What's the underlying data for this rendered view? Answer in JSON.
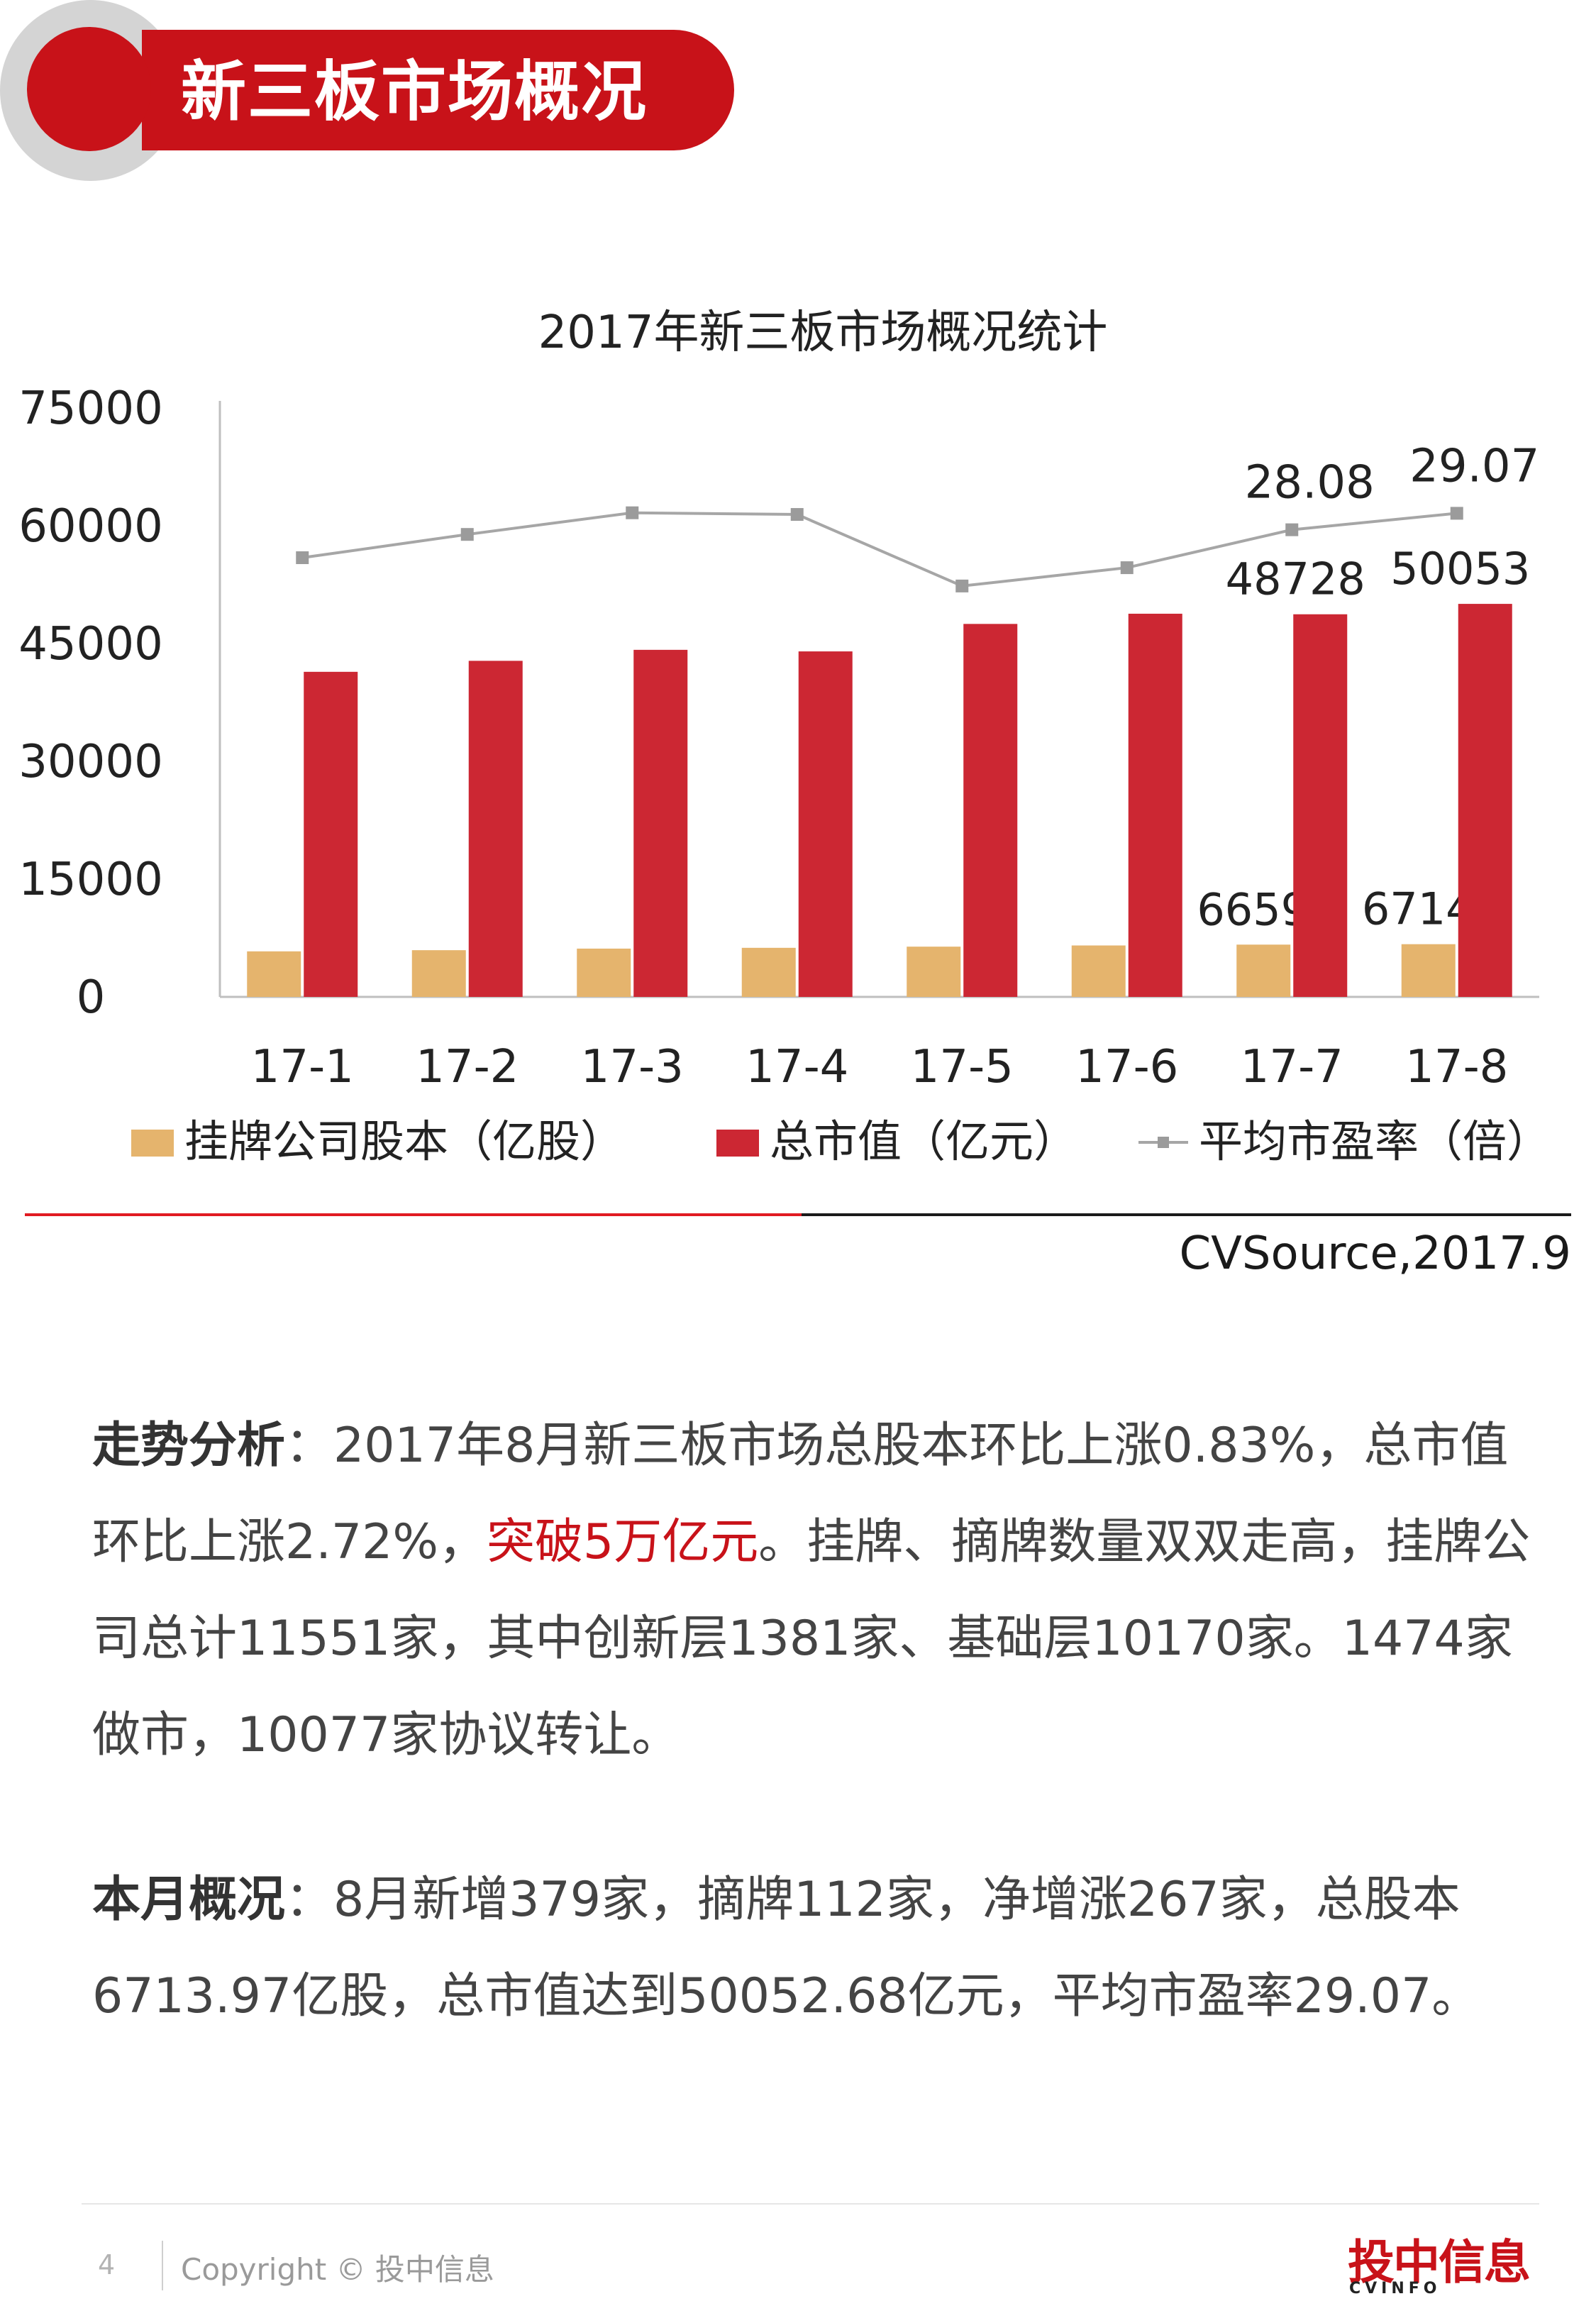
{
  "header": {
    "title": "新三板市场概况"
  },
  "chart_data": {
    "type": "bar",
    "title": "2017年新三板市场概况统计",
    "categories": [
      "17-1",
      "17-2",
      "17-3",
      "17-4",
      "17-5",
      "17-6",
      "17-7",
      "17-8"
    ],
    "ylim": [
      0,
      75000
    ],
    "yticks": [
      "75000",
      "60000",
      "45000",
      "30000",
      "15000",
      "0"
    ],
    "grid": false,
    "legend_position": "bottom",
    "series": [
      {
        "name": "挂牌公司股本（亿股）",
        "kind": "bar",
        "color": "#e5b46d",
        "values": [
          5800,
          5950,
          6150,
          6250,
          6400,
          6550,
          6659,
          6714
        ],
        "labels": [
          "",
          "",
          "",
          "",
          "",
          "",
          "6659",
          "6714"
        ]
      },
      {
        "name": "总市值（亿元）",
        "kind": "bar",
        "color": "#cc2733",
        "values": [
          41400,
          42800,
          44200,
          44000,
          47500,
          48800,
          48728,
          50053
        ],
        "labels": [
          "",
          "",
          "",
          "",
          "",
          "",
          "48728",
          "50053"
        ]
      },
      {
        "name": "平均市盈率（倍）",
        "kind": "line",
        "color": "#a6a6a6",
        "values": [
          26.4,
          27.8,
          29.1,
          29.0,
          24.7,
          25.8,
          28.08,
          29.07
        ],
        "labels": [
          "",
          "",
          "",
          "",
          "",
          "",
          "28.08",
          "29.07"
        ]
      }
    ],
    "source": "CVSource,2017.9"
  },
  "analysis": {
    "lead": "走势分析",
    "text1": "：2017年8月新三板市场总股本环比上涨0.83%，总市值环比上涨2.72%，",
    "highlight": "突破5万亿元",
    "text2": "。挂牌、摘牌数量双双走高，挂牌公司总计11551家，其中创新层1381家、基础层10170家。1474家做市，10077家协议转让。"
  },
  "monthly": {
    "lead": "本月概况",
    "text": "：8月新增379家，摘牌112家，净增涨267家，总股本6713.97亿股，总市值达到50052.68亿元，平均市盈率29.07。"
  },
  "footer": {
    "page": "4",
    "copyright": "Copyright © 投中信息",
    "logo_main": "投中信息",
    "logo_sub": "CVINFO"
  }
}
